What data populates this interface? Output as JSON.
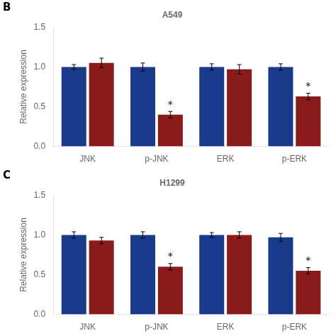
{
  "chart_data": [
    {
      "type": "bar",
      "title": "A549",
      "ylabel": "Relative expression",
      "categories": [
        "JNK",
        "p-JNK",
        "ERK",
        "p-ERK"
      ],
      "series": [
        {
          "color": "#1a3a8c",
          "values": [
            1.0,
            1.0,
            1.0,
            1.0
          ],
          "errors": [
            0.03,
            0.05,
            0.04,
            0.04
          ]
        },
        {
          "color": "#8b1a1a",
          "values": [
            1.05,
            0.4,
            0.97,
            0.63
          ],
          "errors": [
            0.06,
            0.04,
            0.06,
            0.04
          ]
        }
      ],
      "ylim": [
        0.0,
        1.5
      ],
      "yticks": [
        {
          "value": 0.0,
          "label": "0.0"
        },
        0.5,
        {
          "value": 1.0,
          "label": "1.0"
        },
        1.5
      ],
      "grid": false,
      "annotations": [
        {
          "text": "B"
        },
        {
          "text": "*",
          "category": "p-JNK",
          "series": 1
        },
        {
          "text": "*",
          "category": "p-ERK",
          "series": 1
        }
      ]
    },
    {
      "type": "bar",
      "title": "H1299",
      "ylabel": "Relative expression",
      "categories": [
        "JNK",
        "p-JNK",
        "ERK",
        "p-ERK"
      ],
      "series": [
        {
          "color": "#1a3a8c",
          "values": [
            1.0,
            1.0,
            1.0,
            0.97
          ],
          "errors": [
            0.04,
            0.04,
            0.03,
            0.05
          ]
        },
        {
          "color": "#8b1a1a",
          "values": [
            0.93,
            0.6,
            1.0,
            0.55
          ],
          "errors": [
            0.04,
            0.04,
            0.04,
            0.04
          ]
        }
      ],
      "ylim": [
        0.0,
        1.5
      ],
      "yticks": [
        {
          "value": 0.0,
          "label": "0.0"
        },
        0.5,
        {
          "value": 1.0,
          "label": "1.0"
        },
        1.5
      ],
      "grid": false,
      "annotations": [
        {
          "text": "C"
        },
        {
          "text": "*",
          "category": "p-JNK",
          "series": 1
        },
        {
          "text": "*",
          "category": "p-ERK",
          "series": 1
        }
      ]
    }
  ]
}
